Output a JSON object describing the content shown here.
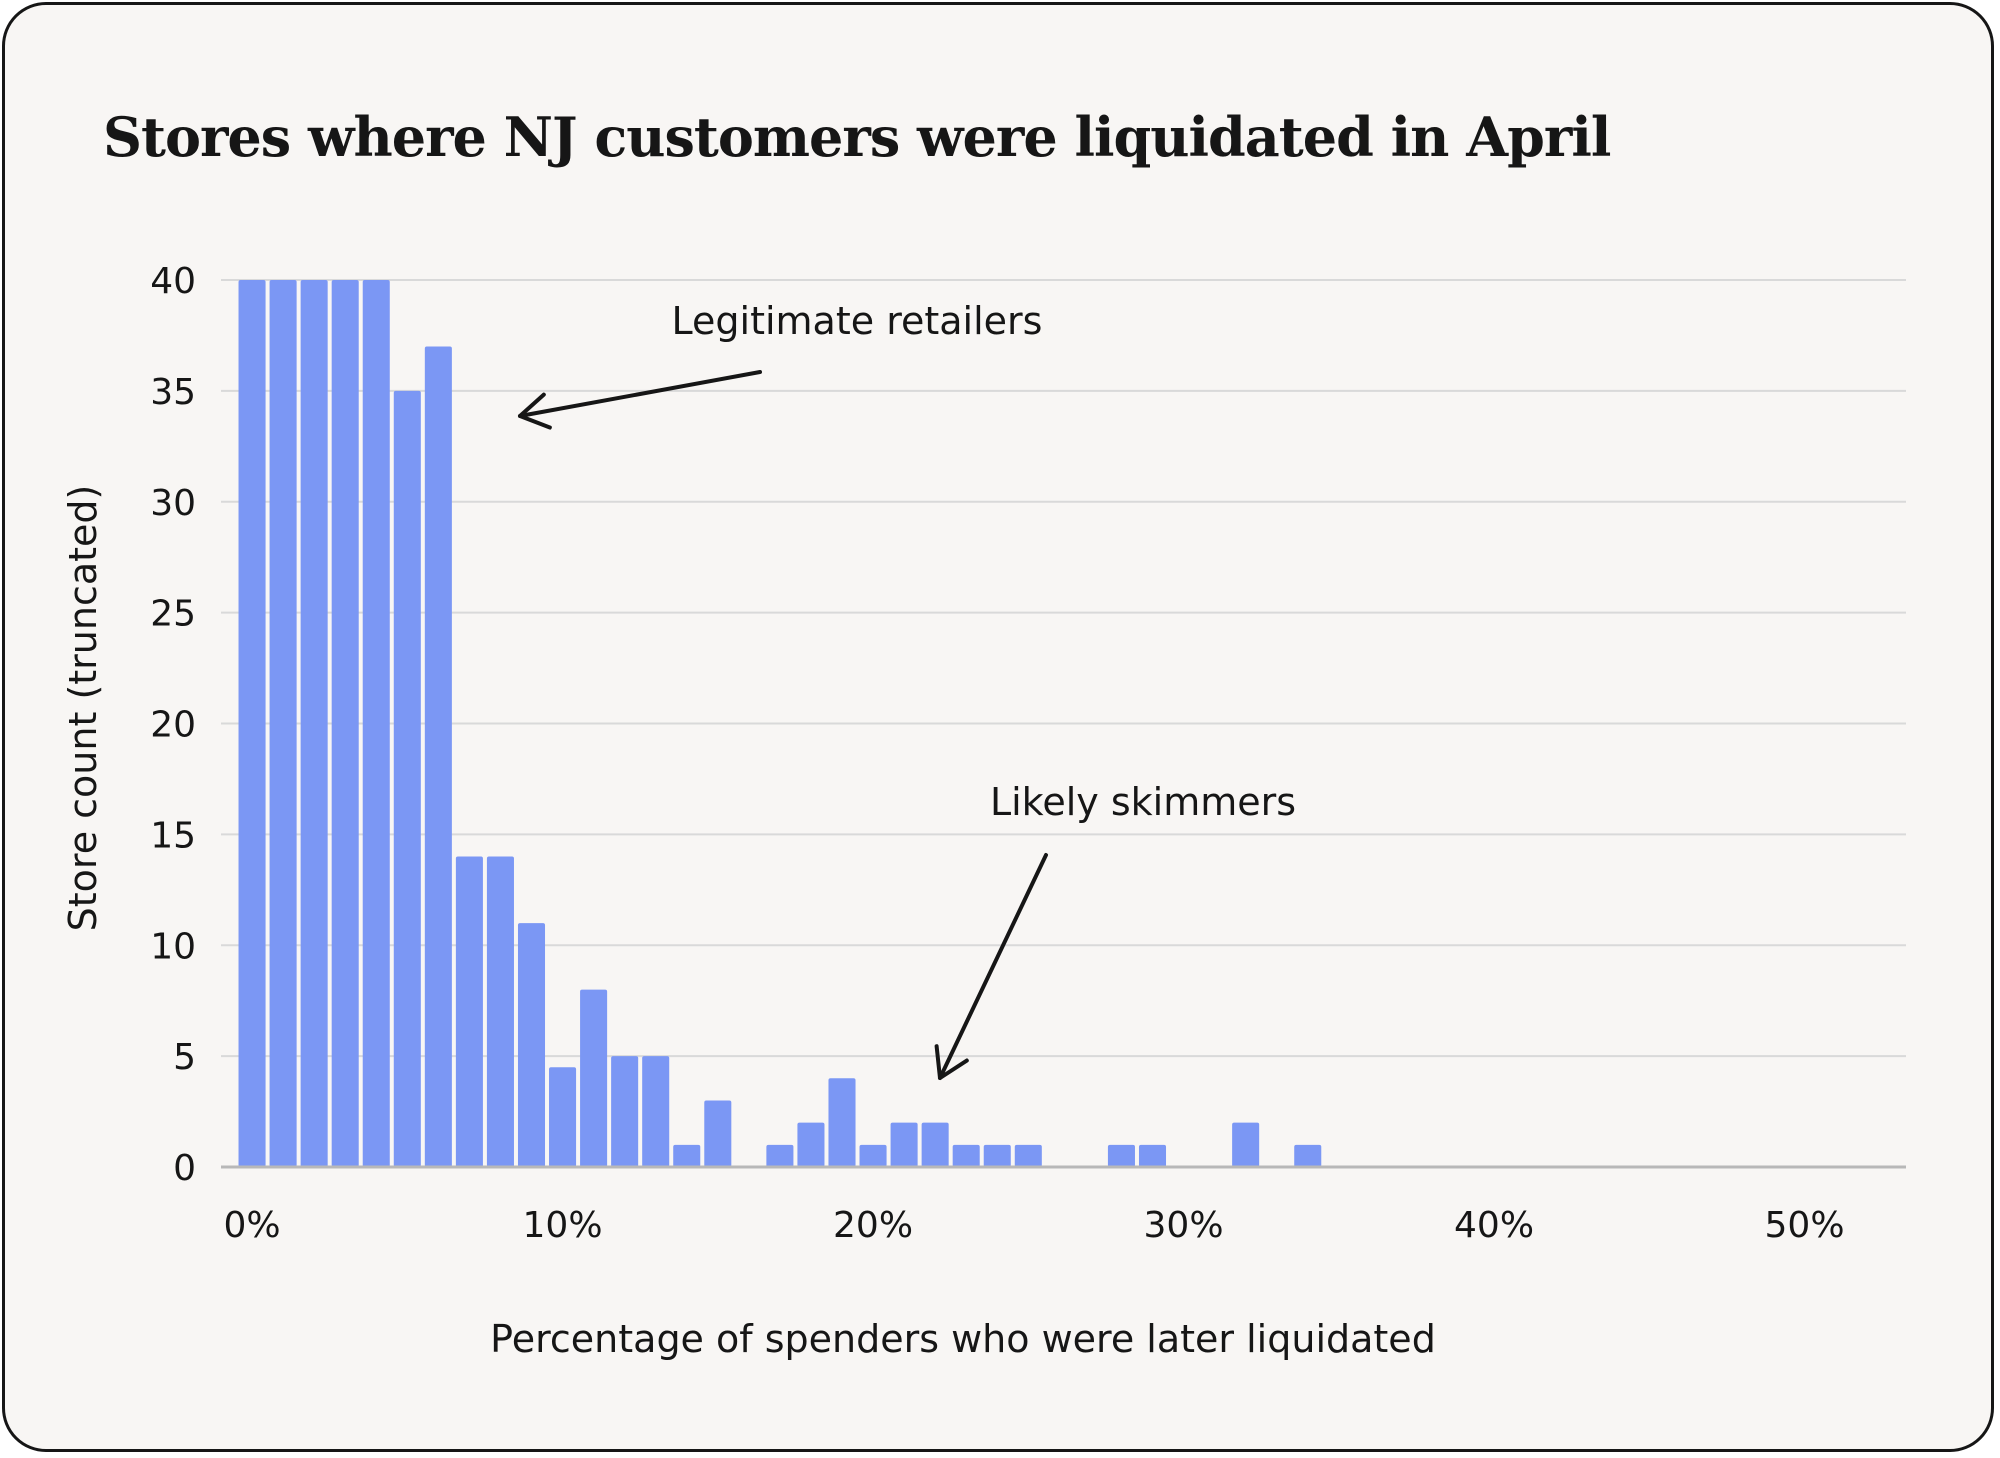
{
  "chart_data": {
    "type": "bar",
    "title": "Stores where NJ customers were liquidated in April",
    "xlabel": "Percentage of spenders who were later liquidated",
    "ylabel": "Store count (truncated)",
    "ylim": [
      0,
      40
    ],
    "xlim": [
      -1,
      52
    ],
    "bin_width": 1,
    "yticks": [
      "0",
      "5",
      "10",
      "15",
      "20",
      "25",
      "30",
      "35",
      "40"
    ],
    "xticks": [
      "0%",
      "10%",
      "20%",
      "30%",
      "40%",
      "50%"
    ],
    "grid": true,
    "x": [
      0,
      1,
      2,
      3,
      4,
      5,
      6,
      7,
      8,
      9,
      10,
      11,
      12,
      13,
      14,
      15,
      16,
      17,
      18,
      19,
      20,
      21,
      22,
      23,
      24,
      25,
      26,
      27,
      28,
      29,
      30,
      31,
      32,
      33,
      34
    ],
    "values": [
      40,
      40,
      40,
      40,
      40,
      35,
      37,
      14,
      14,
      11,
      4.5,
      8,
      5,
      5,
      1,
      3,
      0,
      1,
      2,
      4,
      1,
      2,
      2,
      1,
      1,
      1,
      0,
      0,
      1,
      1,
      0,
      0,
      2,
      0,
      1
    ],
    "color": "#7b97f4",
    "annotations": [
      {
        "text": "Legitimate retailers",
        "points_to": {
          "x": 9,
          "y": 34
        }
      },
      {
        "text": "Likely skimmers",
        "points_to": {
          "x": 22.5,
          "y": 4
        }
      }
    ]
  }
}
